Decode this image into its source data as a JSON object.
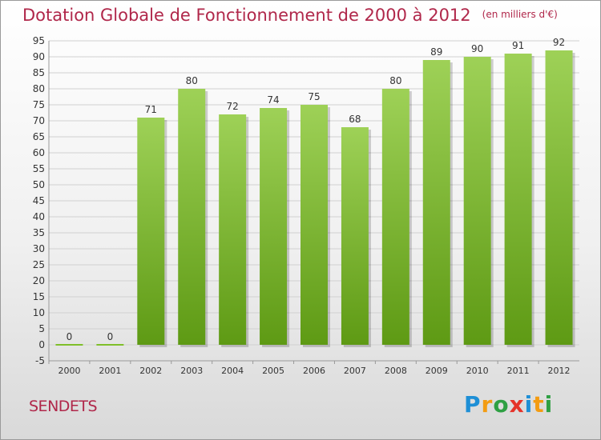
{
  "title": "Dotation Globale de Fonctionnement de 2000 à 2012",
  "unit": "(en milliers d'€)",
  "commune": "SENDETS",
  "logo": {
    "text": "Proxiti",
    "letters": [
      {
        "ch": "P",
        "color": "#1e8fd6"
      },
      {
        "ch": "r",
        "color": "#f39c12"
      },
      {
        "ch": "o",
        "color": "#2ea043"
      },
      {
        "ch": "x",
        "color": "#e5332a"
      },
      {
        "ch": "i",
        "color": "#1e8fd6"
      },
      {
        "ch": "t",
        "color": "#f39c12"
      },
      {
        "ch": "i",
        "color": "#2ea043"
      }
    ]
  },
  "colors": {
    "title": "#b0274a",
    "bar_top": "#9ed157",
    "bar_bottom": "#5e9a14",
    "grid": "#d0d0d0",
    "zero_line": "#7fbf2a"
  },
  "chart_data": {
    "type": "bar",
    "categories": [
      "2000",
      "2001",
      "2002",
      "2003",
      "2004",
      "2005",
      "2006",
      "2007",
      "2008",
      "2009",
      "2010",
      "2011",
      "2012"
    ],
    "values": [
      0,
      0,
      71,
      80,
      72,
      74,
      75,
      68,
      80,
      89,
      90,
      91,
      92
    ],
    "data_labels": [
      "0",
      "0",
      "71",
      "80",
      "72",
      "74",
      "75",
      "68",
      "80",
      "89",
      "90",
      "91",
      "92"
    ],
    "ylim": [
      -5,
      95
    ],
    "yticks": [
      -5,
      0,
      5,
      10,
      15,
      20,
      25,
      30,
      35,
      40,
      45,
      50,
      55,
      60,
      65,
      70,
      75,
      80,
      85,
      90,
      95
    ],
    "grid": true
  }
}
